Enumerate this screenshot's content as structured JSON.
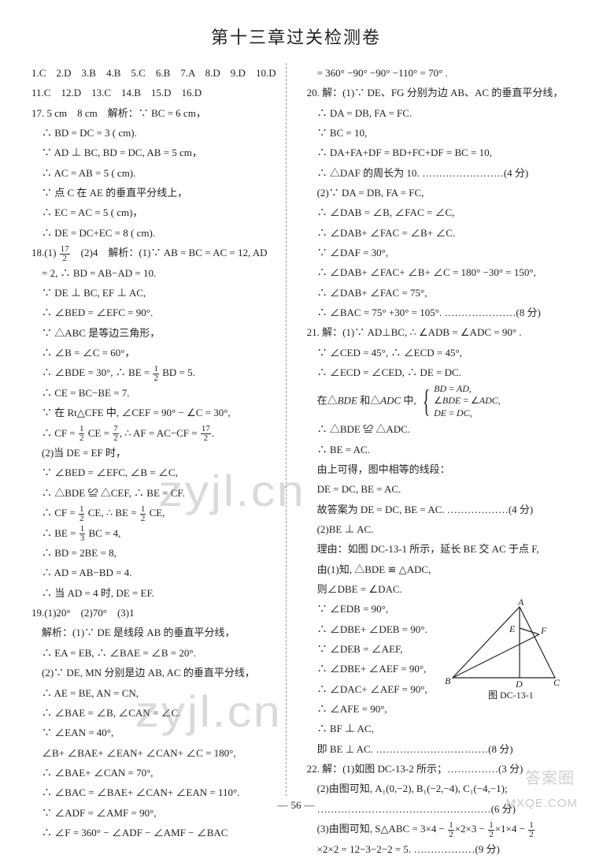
{
  "title": "第十三章过关检测卷",
  "page_num": "56",
  "watermarks": {
    "wm1": "zyjl.cn",
    "wm2": "zyjl.cn",
    "corner1": "答案圈",
    "corner2": "MXQE.COM"
  },
  "left": [
    "1.C　2.D　3.B　4.B　5.C　6.B　7.A　8.D　9.D　10.D",
    "11.C　12.D　13.C　14.B　15.D　16.D",
    "17. 5 cm　8 cm　解析：∵ BC = 6 cm，",
    "　∴ BD = DC = 3 ( cm).",
    "　∵ AD ⊥ BC, BD = DC, AB = 5 cm，",
    "　∴ AC = AB = 5 ( cm).",
    "　∵ 点 C 在 AE 的垂直平分线上，",
    "　∴ EC = AC = 5 ( cm)，",
    "　∴ DE = DC+EC = 8 ( cm).",
    "18.(1) 17/2　(2)4　解析：(1)∵ AB = BC = AC = 12, AD",
    "　= 2, ∴ BD = AB−AD = 10.",
    "　∵ DE ⊥ BC, EF ⊥ AC,",
    "　∴ ∠BED = ∠EFC = 90°.",
    "　∵ △ABC 是等边三角形，",
    "　∴ ∠B = ∠C = 60°，",
    "　∴ ∠BDE = 30°, ∴ BE = 1/2 BD = 5.",
    "　∴ CE = BC−BE = 7.",
    "　∵ 在 Rt△CFE 中, ∠CEF = 90° − ∠C = 30°,",
    "　∴ CF = 1/2 CE = 7/2, ∴ AF = AC−CF = 17/2.",
    "　(2)当 DE = EF 时，",
    "　∵ ∠BED = ∠EFC, ∠B = ∠C,",
    "　∴ △BDE ≌ △CEF, ∴ BE = CF.",
    "　∴ CF = 1/2 CE, ∴ BE = 1/2 CE,",
    "　∴ BE = 1/3 BC = 4,",
    "　∴ BD = 2BE = 8,",
    "　∴ AD = AB−BD = 4.",
    "　∴ 当 AD = 4 时, DE = EF.",
    "19.(1)20°　(2)70°　(3)1<m<17",
    "　解析：(1)∵ DE 是线段 AB 的垂直平分线，",
    "　∴ EA = EB, ∴ ∠BAE = ∠B = 20°.",
    "　(2)∵ DE, MN 分别是边 AB, AC 的垂直平分线，",
    "　∴ AE = BE, AN = CN,",
    "　∴ ∠BAE = ∠B, ∠CAN = ∠C.",
    "　∵ ∠EAN = 40°,",
    "　∠B+ ∠BAE+ ∠EAN+ ∠CAN+ ∠C = 180°,",
    "　∴ ∠BAE+ ∠CAN = 70°,",
    "　∴ ∠BAC = ∠BAE+ ∠CAN+ ∠EAN = 110°.",
    "　∵ ∠ADF = ∠AMF = 90°,",
    "　∴ ∠F = 360° − ∠ADF − ∠AMF − ∠BAC"
  ],
  "right": [
    "　= 360° −90° −90° −110° = 70° .",
    "20. 解：(1)∵ DE、FG 分别为边 AB、AC 的垂直平分线，",
    "　∴ DA = DB, FA = FC.",
    "　∵ BC = 10,",
    "　∴ DA+FA+DF = BD+FC+DF = BC = 10,",
    "　∴ △DAF 的周长为 10. ……………………(4 分)",
    "　(2)∵ DA = DB, FA = FC,",
    "　∴ ∠DAB = ∠B, ∠FAC = ∠C,",
    "　∴ ∠DAB+ ∠FAC = ∠B+ ∠C.",
    "　∵ ∠DAF = 30°,",
    "　∴ ∠DAB+ ∠FAC+ ∠B+ ∠C = 180° −30° = 150°,",
    "　∴ ∠DAB+ ∠FAC = 75°,",
    "　∴ ∠BAC = 75° +30° = 105°. …………………(8 分)",
    "21. 解：(1)∵ AD⊥BC, ∴ ∠ADB = ∠ADC = 90° .",
    "　∵ ∠CED = 45°, ∴ ∠ECD = 45°,",
    "　∴ ∠ECD = ∠CED, ∴ DE = DC.",
    "　在△BDE 和△ADC 中, {BD=AD, ∠BDE=∠ADC, DE=DC,",
    "　∴ △BDE ≌ △ADC.",
    "　∴ BE = AC.",
    "　由上可得，图中相等的线段：",
    "　DE = DC, BE = AC.",
    "　故答案为 DE = DC, BE = AC. ………………(4 分)",
    "　(2)BE ⊥ AC.",
    "　理由：如图 DC-13-1 所示，延长 BE 交 AC 于点 F,",
    "　由(1)知, △BDE ≌ △ADC,",
    "　则∠DBE = ∠DAC.",
    "　∵ ∠EDB = 90°,",
    "　∴ ∠DBE+ ∠DEB = 90°.",
    "　∵ ∠DEB = ∠AEF,",
    "　∴ ∠DBE+ ∠AEF = 90°,",
    "　∴ ∠DAC+ ∠AEF = 90°,",
    "　∴ ∠AFE = 90°,",
    "　∴ BF ⊥ AC,",
    "　即 BE ⊥ AC. ……………………………(8 分)",
    "22. 解：(1)如图 DC-13-2 所示；……………(3 分)",
    "　(2)由图可知, A₁(0,−2), B₁(−2,−4), C₁(−4,−1);",
    "　……………………………………………(6 分)",
    "　(3)由图可知, S△ABC = 3×4 − 1/2×2×3 − 1/2×1×4 − 1/2",
    "　×2×2 = 12−3−2−2 = 5. ………………(9 分)"
  ],
  "diagram": {
    "caption": "图 DC-13-1",
    "labels": {
      "A": "A",
      "B": "B",
      "C": "C",
      "D": "D",
      "E": "E",
      "F": "F"
    },
    "stroke": "#222"
  }
}
